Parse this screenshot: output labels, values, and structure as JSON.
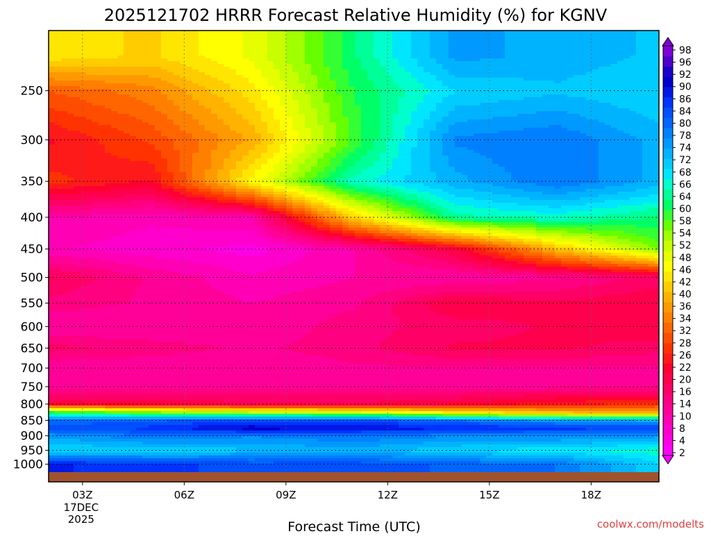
{
  "chart_data": {
    "type": "heatmap",
    "title": "2025121702 HRRR Forecast Relative Humidity (%) for KGNV",
    "xlabel": "Forecast Time (UTC)",
    "ylabel": "",
    "credit": "coolwx.com/modelts",
    "x_ticks": [
      {
        "hour": 3,
        "label": "03Z",
        "sub": [
          "17DEC",
          "2025"
        ]
      },
      {
        "hour": 6,
        "label": "06Z",
        "sub": []
      },
      {
        "hour": 9,
        "label": "09Z",
        "sub": []
      },
      {
        "hour": 12,
        "label": "12Z",
        "sub": []
      },
      {
        "hour": 15,
        "label": "15Z",
        "sub": []
      },
      {
        "hour": 18,
        "label": "18Z",
        "sub": []
      }
    ],
    "x_range_hours": [
      2,
      20
    ],
    "y_ticks": [
      250,
      300,
      350,
      400,
      450,
      500,
      550,
      600,
      650,
      700,
      750,
      800,
      850,
      900,
      950,
      1000
    ],
    "y_range_hPa": [
      200,
      1030
    ],
    "y_scale": "log-pressure",
    "grid": "dotted",
    "colorbar_labels": [
      2,
      4,
      8,
      10,
      14,
      16,
      20,
      22,
      26,
      28,
      32,
      34,
      36,
      40,
      42,
      46,
      48,
      52,
      54,
      58,
      60,
      64,
      66,
      68,
      72,
      74,
      78,
      80,
      84,
      86,
      90,
      92,
      96,
      98
    ],
    "colorbar_colors": [
      "#ff00ff",
      "#ff00e6",
      "#ff00cc",
      "#ff00b4",
      "#ff0099",
      "#ff0080",
      "#ff0066",
      "#ff004d",
      "#ff0033",
      "#ff1a1a",
      "#ff3300",
      "#ff4d00",
      "#ff6600",
      "#ff8000",
      "#ff9900",
      "#ffb300",
      "#ffcc00",
      "#ffe600",
      "#ffff00",
      "#e6ff00",
      "#c8ff00",
      "#a0ff00",
      "#66ff00",
      "#33ff33",
      "#00ff66",
      "#00ff99",
      "#00ffcc",
      "#00e6ff",
      "#00ccff",
      "#00b3ff",
      "#0099ff",
      "#0080ff",
      "#0066ff",
      "#0050ff",
      "#0033ff",
      "#0019e6",
      "#0000cc",
      "#1a00cc",
      "#4d00cc",
      "#8000d9"
    ],
    "rh_profile_at_hours": {
      "hours": [
        2,
        5,
        8,
        11,
        14,
        17,
        20
      ],
      "levels_hPa": [
        220,
        250,
        300,
        350,
        400,
        450,
        500,
        550,
        600,
        650,
        700,
        750,
        800,
        825,
        850,
        875,
        900,
        950,
        1000
      ],
      "values": [
        [
          44,
          30,
          22,
          26,
          10,
          8,
          18,
          14,
          10,
          16,
          10,
          12,
          20,
          60,
          80,
          84,
          76,
          70,
          88
        ],
        [
          42,
          34,
          28,
          22,
          8,
          6,
          12,
          12,
          10,
          14,
          10,
          12,
          20,
          55,
          82,
          86,
          80,
          70,
          86
        ],
        [
          48,
          44,
          38,
          46,
          10,
          4,
          8,
          10,
          10,
          12,
          10,
          12,
          18,
          52,
          84,
          92,
          78,
          72,
          84
        ],
        [
          62,
          60,
          58,
          66,
          42,
          10,
          10,
          12,
          14,
          14,
          12,
          12,
          18,
          50,
          84,
          90,
          80,
          74,
          84
        ],
        [
          76,
          70,
          78,
          74,
          64,
          20,
          10,
          20,
          16,
          18,
          12,
          12,
          20,
          44,
          80,
          88,
          78,
          70,
          82
        ],
        [
          74,
          72,
          80,
          80,
          66,
          40,
          12,
          18,
          18,
          18,
          12,
          12,
          24,
          40,
          76,
          86,
          78,
          68,
          80
        ],
        [
          72,
          70,
          74,
          74,
          62,
          56,
          16,
          20,
          20,
          16,
          12,
          12,
          26,
          38,
          74,
          86,
          76,
          66,
          70
        ]
      ]
    }
  }
}
